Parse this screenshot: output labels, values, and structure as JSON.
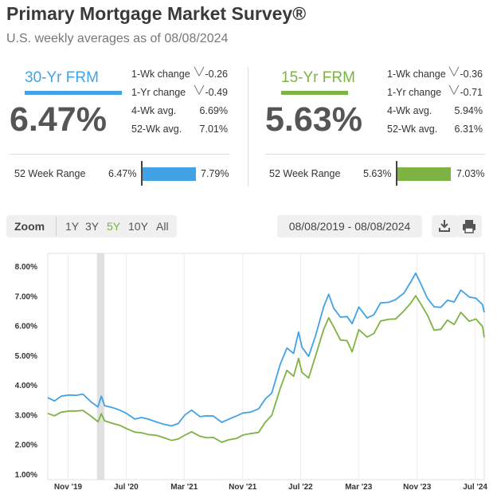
{
  "header": {
    "title": "Primary Mortgage Market Survey®",
    "subtitle": "U.S. weekly averages as of 08/08/2024"
  },
  "products": [
    {
      "label": "30-Yr FRM",
      "rate": "6.47%",
      "color": "#41a2e6",
      "stats": [
        {
          "label": "1-Wk change",
          "value": "-0.26",
          "direction": "down"
        },
        {
          "label": "1-Yr change",
          "value": "-0.49",
          "direction": "down"
        },
        {
          "label": "4-Wk avg.",
          "value": "6.69%"
        },
        {
          "label": "52-Wk avg.",
          "value": "7.01%"
        }
      ],
      "range": {
        "label": "52 Week Range",
        "low": "6.47%",
        "high": "7.79%"
      }
    },
    {
      "label": "15-Yr FRM",
      "rate": "5.63%",
      "color": "#7cb342",
      "stats": [
        {
          "label": "1-Wk change",
          "value": "-0.36",
          "direction": "down"
        },
        {
          "label": "1-Yr change",
          "value": "-0.71",
          "direction": "down"
        },
        {
          "label": "4-Wk avg.",
          "value": "5.94%"
        },
        {
          "label": "52-Wk avg.",
          "value": "6.31%"
        }
      ],
      "range": {
        "label": "52 Week Range",
        "low": "5.63%",
        "high": "7.03%"
      }
    }
  ],
  "toolbar": {
    "zoom_label": "Zoom",
    "zoom_options": [
      "1Y",
      "3Y",
      "5Y",
      "10Y",
      "All"
    ],
    "selected_zoom": "5Y",
    "date_range": "08/08/2019 - 08/08/2024",
    "download_icon": "download-icon",
    "print_icon": "printer-icon"
  },
  "chart_data": {
    "type": "line",
    "x_range": [
      "2019-08-08",
      "2024-08-08"
    ],
    "ylim": [
      1,
      8
    ],
    "ytick_labels": [
      "1.00%",
      "2.00%",
      "3.00%",
      "4.00%",
      "5.00%",
      "6.00%",
      "7.00%",
      "8.00%"
    ],
    "xtick_labels": [
      {
        "label": "Nov '19",
        "date": "2019-11-01"
      },
      {
        "label": "Jul '20",
        "date": "2020-07-01"
      },
      {
        "label": "Mar '21",
        "date": "2021-03-01"
      },
      {
        "label": "Nov '21",
        "date": "2021-11-01"
      },
      {
        "label": "Jul '22",
        "date": "2022-07-01"
      },
      {
        "label": "Mar '23",
        "date": "2023-03-01"
      },
      {
        "label": "Nov '23",
        "date": "2023-11-01"
      },
      {
        "label": "Jul '24",
        "date": "2024-07-01"
      }
    ],
    "highlight_band": {
      "from": "2020-03-01",
      "to": "2020-04-01",
      "color": "#dddddd"
    },
    "grid": true,
    "series": [
      {
        "name": "30-Yr FRM",
        "color": "#41a2e6",
        "points": [
          [
            "2019-08-08",
            3.6
          ],
          [
            "2019-09-05",
            3.49
          ],
          [
            "2019-10-03",
            3.65
          ],
          [
            "2019-11-07",
            3.69
          ],
          [
            "2019-12-05",
            3.68
          ],
          [
            "2020-01-02",
            3.72
          ],
          [
            "2020-02-06",
            3.45
          ],
          [
            "2020-03-05",
            3.29
          ],
          [
            "2020-03-19",
            3.65
          ],
          [
            "2020-04-02",
            3.33
          ],
          [
            "2020-05-07",
            3.26
          ],
          [
            "2020-06-04",
            3.18
          ],
          [
            "2020-07-02",
            3.07
          ],
          [
            "2020-08-06",
            2.88
          ],
          [
            "2020-09-03",
            2.93
          ],
          [
            "2020-10-01",
            2.88
          ],
          [
            "2020-11-05",
            2.78
          ],
          [
            "2020-12-03",
            2.71
          ],
          [
            "2021-01-07",
            2.65
          ],
          [
            "2021-02-04",
            2.73
          ],
          [
            "2021-03-04",
            3.02
          ],
          [
            "2021-04-01",
            3.18
          ],
          [
            "2021-05-06",
            2.96
          ],
          [
            "2021-06-03",
            2.99
          ],
          [
            "2021-07-01",
            2.98
          ],
          [
            "2021-08-05",
            2.77
          ],
          [
            "2021-09-02",
            2.87
          ],
          [
            "2021-10-07",
            2.99
          ],
          [
            "2021-11-04",
            3.09
          ],
          [
            "2021-12-02",
            3.11
          ],
          [
            "2022-01-06",
            3.22
          ],
          [
            "2022-02-03",
            3.55
          ],
          [
            "2022-03-03",
            3.76
          ],
          [
            "2022-04-07",
            4.72
          ],
          [
            "2022-05-05",
            5.27
          ],
          [
            "2022-06-02",
            5.09
          ],
          [
            "2022-06-23",
            5.81
          ],
          [
            "2022-07-07",
            5.3
          ],
          [
            "2022-08-04",
            4.99
          ],
          [
            "2022-09-01",
            5.66
          ],
          [
            "2022-10-06",
            6.66
          ],
          [
            "2022-10-27",
            7.08
          ],
          [
            "2022-11-17",
            6.61
          ],
          [
            "2022-12-15",
            6.31
          ],
          [
            "2023-01-12",
            6.33
          ],
          [
            "2023-02-02",
            6.09
          ],
          [
            "2023-03-02",
            6.65
          ],
          [
            "2023-04-06",
            6.28
          ],
          [
            "2023-05-04",
            6.39
          ],
          [
            "2023-06-01",
            6.79
          ],
          [
            "2023-07-06",
            6.81
          ],
          [
            "2023-08-03",
            6.9
          ],
          [
            "2023-09-07",
            7.12
          ],
          [
            "2023-10-05",
            7.49
          ],
          [
            "2023-10-26",
            7.79
          ],
          [
            "2023-11-16",
            7.44
          ],
          [
            "2023-12-14",
            6.95
          ],
          [
            "2024-01-11",
            6.66
          ],
          [
            "2024-02-08",
            6.64
          ],
          [
            "2024-03-07",
            6.88
          ],
          [
            "2024-04-04",
            6.82
          ],
          [
            "2024-05-02",
            7.22
          ],
          [
            "2024-06-06",
            6.99
          ],
          [
            "2024-07-04",
            6.95
          ],
          [
            "2024-08-01",
            6.73
          ],
          [
            "2024-08-08",
            6.47
          ]
        ]
      },
      {
        "name": "15-Yr FRM",
        "color": "#7cb342",
        "points": [
          [
            "2019-08-08",
            3.07
          ],
          [
            "2019-09-05",
            2.99
          ],
          [
            "2019-10-03",
            3.11
          ],
          [
            "2019-11-07",
            3.15
          ],
          [
            "2019-12-05",
            3.15
          ],
          [
            "2020-01-02",
            3.17
          ],
          [
            "2020-02-06",
            2.97
          ],
          [
            "2020-03-05",
            2.79
          ],
          [
            "2020-03-19",
            3.06
          ],
          [
            "2020-04-02",
            2.82
          ],
          [
            "2020-05-07",
            2.73
          ],
          [
            "2020-06-04",
            2.67
          ],
          [
            "2020-07-02",
            2.56
          ],
          [
            "2020-08-06",
            2.44
          ],
          [
            "2020-09-03",
            2.42
          ],
          [
            "2020-10-01",
            2.36
          ],
          [
            "2020-11-05",
            2.33
          ],
          [
            "2020-12-03",
            2.26
          ],
          [
            "2021-01-07",
            2.16
          ],
          [
            "2021-02-04",
            2.21
          ],
          [
            "2021-03-04",
            2.34
          ],
          [
            "2021-04-01",
            2.45
          ],
          [
            "2021-05-06",
            2.3
          ],
          [
            "2021-06-03",
            2.25
          ],
          [
            "2021-07-01",
            2.26
          ],
          [
            "2021-08-05",
            2.1
          ],
          [
            "2021-09-02",
            2.18
          ],
          [
            "2021-10-07",
            2.23
          ],
          [
            "2021-11-04",
            2.35
          ],
          [
            "2021-12-02",
            2.39
          ],
          [
            "2022-01-06",
            2.43
          ],
          [
            "2022-02-03",
            2.77
          ],
          [
            "2022-03-03",
            3.01
          ],
          [
            "2022-04-07",
            3.91
          ],
          [
            "2022-05-05",
            4.52
          ],
          [
            "2022-06-02",
            4.32
          ],
          [
            "2022-06-23",
            4.92
          ],
          [
            "2022-07-07",
            4.45
          ],
          [
            "2022-08-04",
            4.26
          ],
          [
            "2022-09-01",
            4.98
          ],
          [
            "2022-10-06",
            5.9
          ],
          [
            "2022-10-27",
            6.29
          ],
          [
            "2022-11-17",
            5.98
          ],
          [
            "2022-12-15",
            5.54
          ],
          [
            "2023-01-12",
            5.52
          ],
          [
            "2023-02-02",
            5.14
          ],
          [
            "2023-03-02",
            5.89
          ],
          [
            "2023-04-06",
            5.64
          ],
          [
            "2023-05-04",
            5.76
          ],
          [
            "2023-06-01",
            6.18
          ],
          [
            "2023-07-06",
            6.24
          ],
          [
            "2023-08-03",
            6.25
          ],
          [
            "2023-09-07",
            6.52
          ],
          [
            "2023-10-05",
            6.78
          ],
          [
            "2023-10-26",
            7.03
          ],
          [
            "2023-11-16",
            6.76
          ],
          [
            "2023-12-14",
            6.38
          ],
          [
            "2024-01-11",
            5.87
          ],
          [
            "2024-02-08",
            5.9
          ],
          [
            "2024-03-07",
            6.21
          ],
          [
            "2024-04-04",
            6.06
          ],
          [
            "2024-05-02",
            6.47
          ],
          [
            "2024-06-06",
            6.17
          ],
          [
            "2024-07-04",
            6.25
          ],
          [
            "2024-08-01",
            5.99
          ],
          [
            "2024-08-08",
            5.63
          ]
        ]
      }
    ]
  }
}
